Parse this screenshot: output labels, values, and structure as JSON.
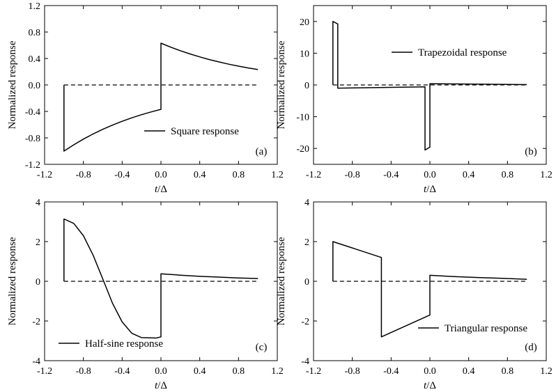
{
  "chart_data": [
    {
      "type": "line",
      "panel_label": "(a)",
      "xlabel": "t/Δ",
      "ylabel": "Normalized response",
      "xlim": [
        -1.2,
        1.2
      ],
      "ylim": [
        -1.2,
        1.2
      ],
      "xticks": [
        "-1.2",
        "-0.8",
        "-0.4",
        "0.0",
        "0.4",
        "0.8",
        "1.2"
      ],
      "yticks": [
        "-1.2",
        "-0.8",
        "-0.4",
        "0.0",
        "0.4",
        "0.8",
        "1.2"
      ],
      "legend": "Square response",
      "legend_position": "lower-center",
      "baseline": 0,
      "series": [
        {
          "name": "Square response",
          "x": [
            -1.0,
            -1.0,
            -0.9,
            -0.8,
            -0.7,
            -0.6,
            -0.5,
            -0.4,
            -0.3,
            -0.2,
            -0.1,
            0.0,
            0.0,
            0.1,
            0.2,
            0.3,
            0.4,
            0.5,
            0.6,
            0.7,
            0.8,
            0.9,
            1.0
          ],
          "y": [
            0.0,
            -1.0,
            -0.905,
            -0.819,
            -0.741,
            -0.67,
            -0.607,
            -0.549,
            -0.497,
            -0.449,
            -0.407,
            -0.368,
            0.632,
            0.572,
            0.518,
            0.468,
            0.424,
            0.383,
            0.347,
            0.314,
            0.284,
            0.257,
            0.233
          ]
        }
      ]
    },
    {
      "type": "line",
      "panel_label": "(b)",
      "xlabel": "t/Δ",
      "ylabel": "Normalized response",
      "xlim": [
        -1.2,
        1.2
      ],
      "ylim": [
        -25,
        25
      ],
      "xticks": [
        "-1.2",
        "-0.8",
        "-0.4",
        "0.0",
        "0.4",
        "0.8",
        "1.2"
      ],
      "yticks": [
        "-20",
        "-10",
        "0",
        "10",
        "20"
      ],
      "ytick_values": [
        -20,
        -10,
        0,
        10,
        20
      ],
      "legend": "Trapezoidal response",
      "legend_position": "top-right",
      "baseline": 0,
      "series": [
        {
          "name": "Trapezoidal response",
          "x": [
            -1.0,
            -1.0,
            -0.95,
            -0.95,
            -0.05,
            -0.05,
            0.0,
            0.0,
            1.0
          ],
          "y": [
            0,
            20.0,
            19.2,
            -1.0,
            -0.6,
            -20.5,
            -19.6,
            0.4,
            0.1
          ]
        }
      ]
    },
    {
      "type": "line",
      "panel_label": "(c)",
      "xlabel": "t/Δ",
      "ylabel": "Normalized response",
      "xlim": [
        -1.2,
        1.2
      ],
      "ylim": [
        -4,
        4
      ],
      "xticks": [
        "-1.2",
        "-0.8",
        "-0.4",
        "0.0",
        "0.4",
        "0.8",
        "1.2"
      ],
      "yticks": [
        "-4",
        "-2",
        "0",
        "2",
        "4"
      ],
      "ytick_values": [
        -4,
        -2,
        0,
        2,
        4
      ],
      "legend": "Half-sine response",
      "legend_position": "bottom-left",
      "baseline": 0,
      "series": [
        {
          "name": "Half-sine response",
          "x": [
            -1.0,
            -1.0,
            -0.9,
            -0.8,
            -0.7,
            -0.6,
            -0.5,
            -0.4,
            -0.3,
            -0.2,
            -0.1,
            -0.05,
            0.0,
            0.0,
            0.2,
            0.4,
            0.6,
            0.8,
            1.0
          ],
          "y": [
            0.0,
            3.14,
            2.92,
            2.3,
            1.32,
            0.12,
            -1.1,
            -2.05,
            -2.62,
            -2.84,
            -2.85,
            -2.86,
            -2.8,
            0.38,
            0.31,
            0.25,
            0.21,
            0.17,
            0.14
          ]
        }
      ]
    },
    {
      "type": "line",
      "panel_label": "(d)",
      "xlabel": "t/Δ",
      "ylabel": "Normalized response",
      "xlim": [
        -1.2,
        1.2
      ],
      "ylim": [
        -4,
        4
      ],
      "xticks": [
        "-1.2",
        "-0.8",
        "-0.4",
        "0.0",
        "0.4",
        "0.8",
        "1.2"
      ],
      "yticks": [
        "-4",
        "-2",
        "0",
        "2",
        "4"
      ],
      "ytick_values": [
        -4,
        -2,
        0,
        2,
        4
      ],
      "legend": "Triangular response",
      "legend_position": "bottom-right",
      "baseline": 0,
      "series": [
        {
          "name": "Triangular response",
          "x": [
            -1.0,
            -1.0,
            -0.5,
            -0.5,
            0.0,
            0.0,
            0.25,
            0.5,
            0.75,
            1.0
          ],
          "y": [
            0.0,
            2.0,
            1.2,
            -2.8,
            -1.7,
            0.3,
            0.24,
            0.19,
            0.15,
            0.1
          ]
        }
      ]
    }
  ]
}
